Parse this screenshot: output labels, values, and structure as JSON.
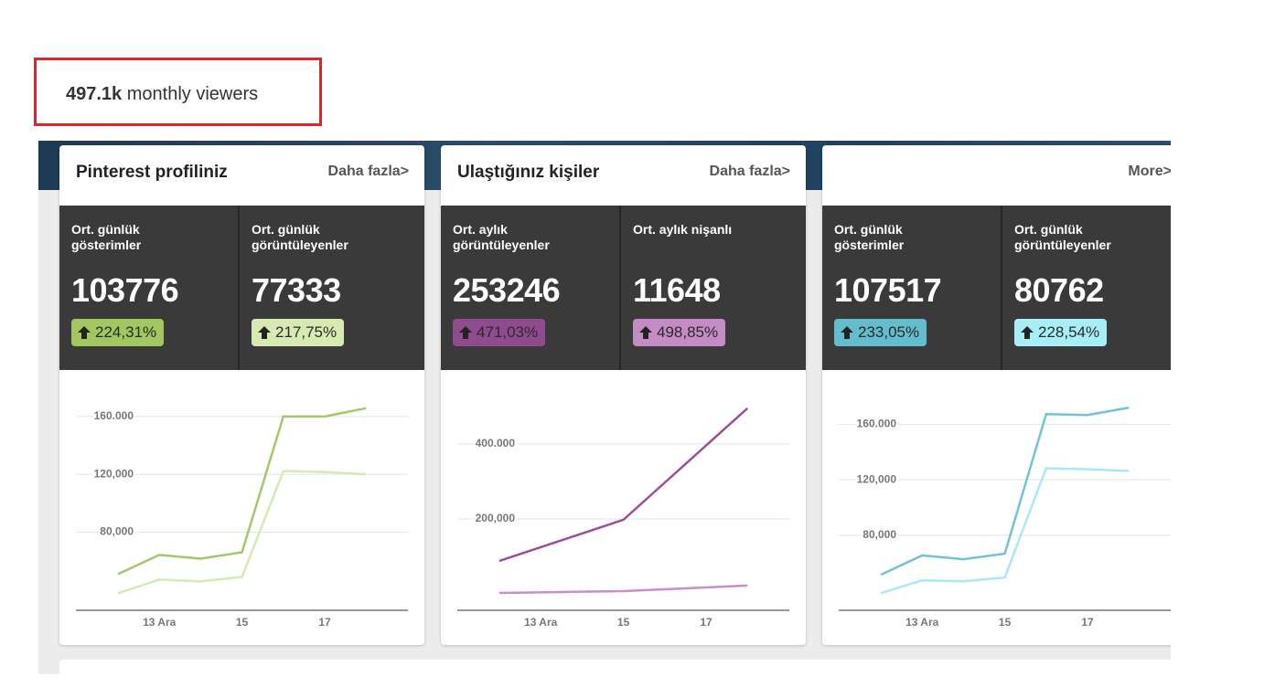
{
  "header": {
    "value": "497.1k",
    "label": "monthly viewers"
  },
  "cards": [
    {
      "title": "Pinterest profiliniz",
      "more": "Daha fazla>",
      "stats": [
        {
          "label": "Ort. günlük gösterimler",
          "value": 103776,
          "change": "224,31%",
          "color": "#a2c660"
        },
        {
          "label": "Ort. günlük görüntüleyenler",
          "value": 77333,
          "change": "217,75%",
          "color": "#d7eab2"
        }
      ]
    },
    {
      "title": "Ulaştığınız kişiler",
      "more": "Daha fazla>",
      "stats": [
        {
          "label": "Ort. aylık görüntüleyenler",
          "value": 253246,
          "change": "471,03%",
          "color": "#8f4b8d"
        },
        {
          "label": "Ort. aylık nişanlı",
          "value": 11648,
          "change": "498,85%",
          "color": "#c58bc4"
        }
      ]
    },
    {
      "more": "More>",
      "stats": [
        {
          "label": "Ort. günlük gösterimler",
          "value": 107517,
          "change": "233,05%",
          "color": "#64bdcc"
        },
        {
          "label": "Ort. günlük görüntüleyenler",
          "value": 80762,
          "change": "228,54%",
          "color": "#a8eef8"
        }
      ]
    }
  ],
  "chart_data": [
    {
      "type": "line",
      "categories": [
        null,
        "13 Ara",
        null,
        "15",
        null,
        "17",
        null
      ],
      "ylim": [
        26000,
        170000
      ],
      "yticks": [
        {
          "value": 80000,
          "label": "80,000"
        },
        {
          "value": 120000,
          "label": "120,000"
        },
        {
          "value": 160000,
          "label": "160.000"
        }
      ],
      "grid": true,
      "series": [
        {
          "color": "#a3c76a",
          "values": [
            51000,
            64300,
            61700,
            66100,
            160000,
            160000,
            165700
          ]
        },
        {
          "color": "#d5e9b2",
          "values": [
            37800,
            47200,
            46000,
            49100,
            122200,
            121600,
            120000
          ]
        }
      ]
    },
    {
      "type": "line",
      "categories": [
        null,
        "13 Ara",
        null,
        "15",
        null,
        "17",
        null
      ],
      "ylim": [
        -44000,
        512000
      ],
      "yticks": [
        {
          "value": 200000,
          "label": "200,000"
        },
        {
          "value": 400000,
          "label": "400.000"
        }
      ],
      "grid": true,
      "series": [
        {
          "color": "#9b4f96",
          "values": [
            87800,
            124400,
            161000,
            197600,
            296800,
            395900,
            495100
          ]
        },
        {
          "color": "#c98fc7",
          "values": [
            2400,
            4000,
            5700,
            7300,
            12200,
            17100,
            22000
          ]
        }
      ]
    },
    {
      "type": "line",
      "categories": [
        null,
        "13 Ara",
        null,
        "15",
        null,
        "17",
        null
      ],
      "ylim": [
        26000,
        176000
      ],
      "yticks": [
        {
          "value": 80000,
          "label": "80,000"
        },
        {
          "value": 120000,
          "label": "120,000"
        },
        {
          "value": 160000,
          "label": "160.000"
        }
      ],
      "grid": true,
      "series": [
        {
          "color": "#72c4d1",
          "values": [
            51600,
            65500,
            62800,
            66800,
            167300,
            166600,
            171900
          ]
        },
        {
          "color": "#a9e9f3",
          "values": [
            38300,
            47600,
            46900,
            49600,
            128300,
            127600,
            126300
          ]
        }
      ]
    }
  ]
}
